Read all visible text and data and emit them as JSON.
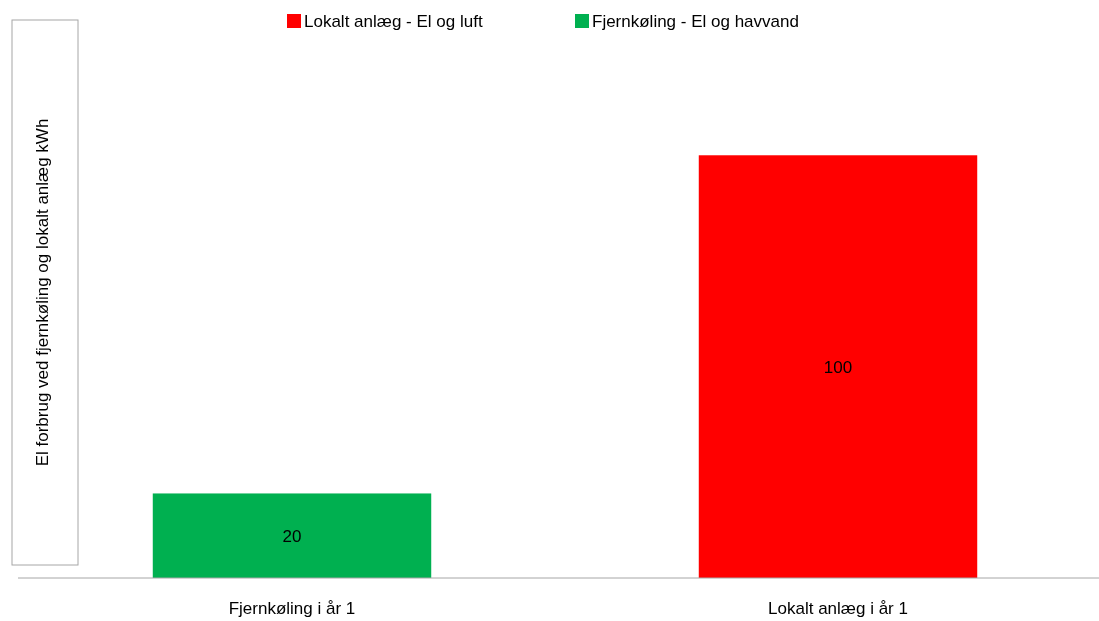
{
  "chart_data": {
    "type": "bar",
    "ylabel": "El forbrug ved fjernkøling og lokalt anlæg kWh",
    "categories": [
      "Fjernkøling i år 1",
      "Lokalt anlæg i år 1"
    ],
    "stacked": true,
    "data_labels": true,
    "legend": "top",
    "series": [
      {
        "name": "Lokalt anlæg - El og luft",
        "color": "#ff0000",
        "values": [
          null,
          100
        ]
      },
      {
        "name": "Fjernkøling - El og havvand",
        "color": "#00b050",
        "values": [
          20,
          null
        ]
      }
    ]
  }
}
